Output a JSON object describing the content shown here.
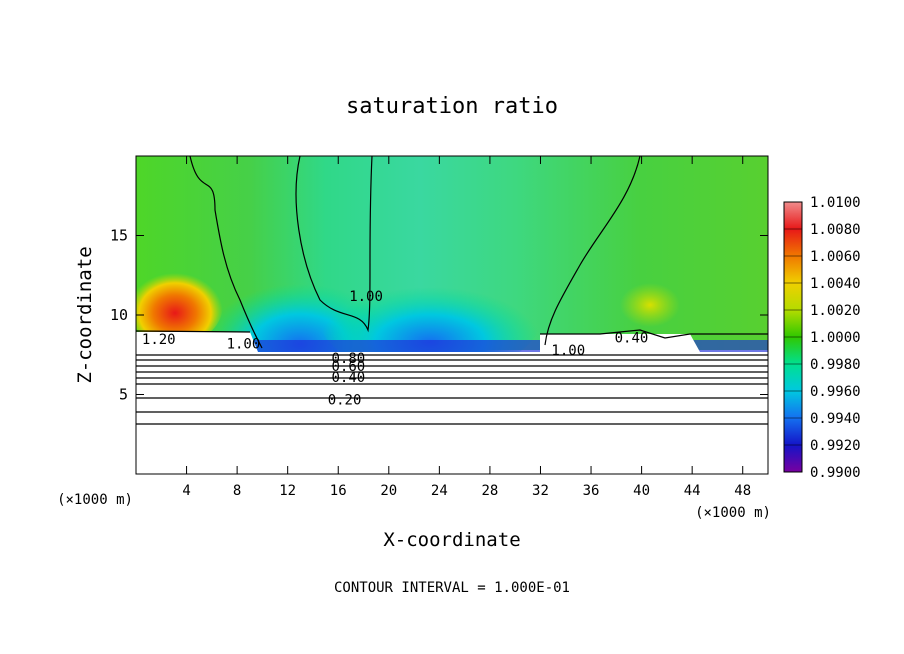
{
  "chart_data": {
    "type": "heatmap",
    "title": "saturation ratio",
    "xlabel": "X-coordinate",
    "ylabel": "Z-coordinate",
    "x_unit_left": "(×1000 m)",
    "x_unit_right": "(×1000 m)",
    "footer": "CONTOUR INTERVAL = 1.000E-01",
    "xlim": [
      0,
      50
    ],
    "ylim": [
      0,
      20
    ],
    "x_ticks": [
      4,
      8,
      12,
      16,
      20,
      24,
      28,
      32,
      36,
      40,
      44,
      48
    ],
    "y_ticks": [
      5,
      10,
      15
    ],
    "colorbar": {
      "min": 0.99,
      "max": 1.01,
      "labels": [
        "1.0100",
        "1.0080",
        "1.0060",
        "1.0040",
        "1.0020",
        "1.0000",
        "0.9980",
        "0.9960",
        "0.9940",
        "0.9920",
        "0.9900"
      ],
      "colors": [
        "#f08c8c",
        "#e81818",
        "#f07800",
        "#f0d000",
        "#b4dc00",
        "#30c800",
        "#00e090",
        "#00c8e0",
        "#1470f0",
        "#1414c8",
        "#7800a0"
      ]
    },
    "contour_labels": [
      {
        "text": "1.20",
        "x": 1.8,
        "z": 8.5
      },
      {
        "text": "1.00",
        "x": 8.5,
        "z": 8.2
      },
      {
        "text": "1.00",
        "x": 18.2,
        "z": 11.2
      },
      {
        "text": "0.80",
        "x": 16.8,
        "z": 7.3
      },
      {
        "text": "0.60",
        "x": 16.8,
        "z": 6.8
      },
      {
        "text": "0.40",
        "x": 16.8,
        "z": 6.1
      },
      {
        "text": "0.20",
        "x": 16.5,
        "z": 4.7
      },
      {
        "text": "1.00",
        "x": 34.2,
        "z": 7.8
      },
      {
        "text": "0.40",
        "x": 39.2,
        "z": 8.6
      }
    ],
    "contour_levels_below": [
      0.2,
      0.4,
      0.6,
      0.8,
      1.0,
      1.2
    ]
  }
}
